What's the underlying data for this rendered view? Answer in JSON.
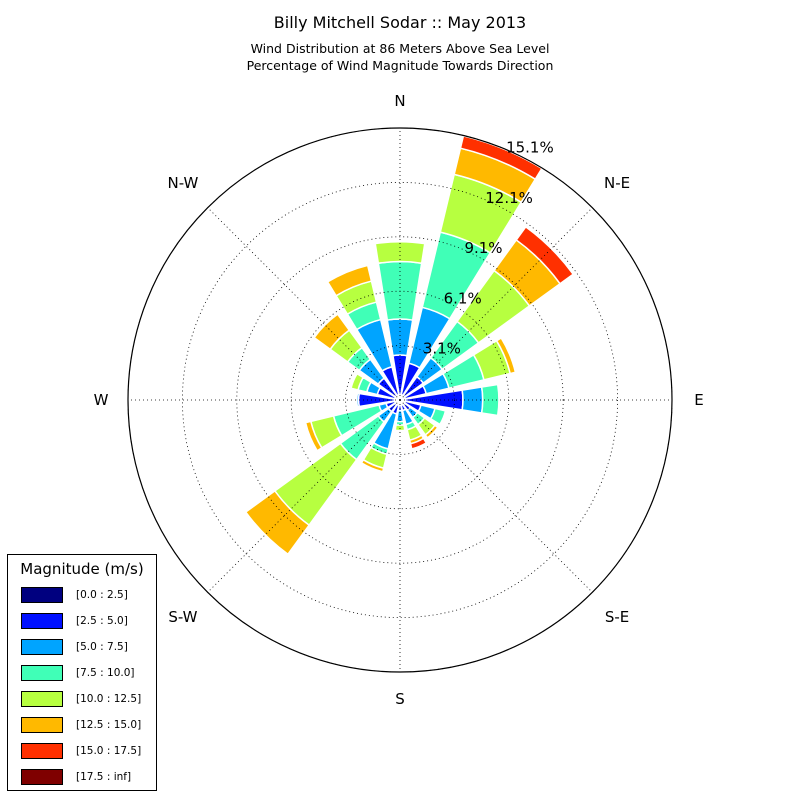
{
  "title": "Billy Mitchell Sodar :: May 2013",
  "subtitle_line1": "Wind Distribution at 86 Meters Above Sea Level",
  "subtitle_line2": "Percentage of Wind Magnitude Towards Direction",
  "directions": [
    "N",
    "N-E",
    "E",
    "S-E",
    "S",
    "S-W",
    "W",
    "N-W"
  ],
  "legend": {
    "title": "Magnitude (m/s)",
    "items": [
      {
        "label": "[0.0 : 2.5]",
        "color": "#00007f"
      },
      {
        "label": "[2.5 : 5.0]",
        "color": "#0010ff"
      },
      {
        "label": "[5.0 : 7.5]",
        "color": "#00a4ff"
      },
      {
        "label": "[7.5 : 10.0]",
        "color": "#40ffb7"
      },
      {
        "label": "[10.0 : 12.5]",
        "color": "#b7ff40"
      },
      {
        "label": "[12.5 : 15.0]",
        "color": "#ffb900"
      },
      {
        "label": "[15.0 : 17.5]",
        "color": "#ff3000"
      },
      {
        "label": "[17.5 : inf]",
        "color": "#7f0000"
      }
    ]
  },
  "chart_data": {
    "type": "wind-rose",
    "radial_ticks": [
      "3.1%",
      "6.1%",
      "9.1%",
      "12.1%",
      "15.1%"
    ],
    "radial_tick_values": [
      3.0247,
      6.0494,
      9.0741,
      12.0988,
      15.1235
    ],
    "rmax": 15.1235,
    "sector_width_deg": 18.0,
    "bins": [
      "[0.0 : 2.5]",
      "[2.5 : 5.0]",
      "[5.0 : 7.5]",
      "[7.5 : 10.0]",
      "[10.0 : 12.5]",
      "[12.5 : 15.0]",
      "[15.0 : 17.5]",
      "[17.5 : inf]"
    ],
    "sectors": [
      {
        "direction": 0.0,
        "cumulative": [
          0.3,
          2.5,
          4.5,
          7.7,
          8.8,
          8.8,
          8.8,
          8.8
        ]
      },
      {
        "direction": 22.5,
        "cumulative": [
          0.3,
          2.1,
          5.3,
          9.6,
          12.9,
          14.4,
          15.1,
          15.1
        ]
      },
      {
        "direction": 45.0,
        "cumulative": [
          0.3,
          1.6,
          2.9,
          5.4,
          8.9,
          11.0,
          11.9,
          11.9
        ]
      },
      {
        "direction": 67.5,
        "cumulative": [
          0.3,
          1.5,
          2.8,
          4.8,
          6.3,
          6.6,
          6.6,
          6.6
        ]
      },
      {
        "direction": 90.0,
        "cumulative": [
          0.3,
          3.5,
          4.6,
          5.5,
          5.5,
          5.5,
          5.5,
          5.5
        ]
      },
      {
        "direction": 112.5,
        "cumulative": [
          0.3,
          1.2,
          2.0,
          2.6,
          2.6,
          2.6,
          2.6,
          2.6
        ]
      },
      {
        "direction": 135.0,
        "cumulative": [
          0.3,
          0.7,
          1.2,
          1.7,
          2.4,
          2.6,
          2.6,
          2.6
        ]
      },
      {
        "direction": 157.5,
        "cumulative": [
          0.3,
          0.6,
          1.4,
          1.7,
          2.3,
          2.5,
          2.8,
          2.8
        ]
      },
      {
        "direction": 180.0,
        "cumulative": [
          0.3,
          0.6,
          1.2,
          1.4,
          1.7,
          1.7,
          1.7,
          1.7
        ]
      },
      {
        "direction": 202.5,
        "cumulative": [
          0.3,
          0.8,
          2.8,
          3.1,
          3.9,
          4.1,
          4.1,
          4.1
        ]
      },
      {
        "direction": 225.0,
        "cumulative": [
          0.3,
          0.8,
          1.5,
          4.1,
          8.6,
          10.6,
          10.6,
          10.6
        ]
      },
      {
        "direction": 247.5,
        "cumulative": [
          0.3,
          0.8,
          1.2,
          3.8,
          5.1,
          5.4,
          5.4,
          5.4
        ]
      },
      {
        "direction": 270.0,
        "cumulative": [
          0.3,
          2.3,
          2.4,
          2.4,
          2.4,
          2.4,
          2.4,
          2.4
        ]
      },
      {
        "direction": 292.5,
        "cumulative": [
          0.3,
          1.3,
          1.9,
          2.4,
          2.8,
          2.8,
          2.8,
          2.8
        ]
      },
      {
        "direction": 315.0,
        "cumulative": [
          0.3,
          1.5,
          2.8,
          3.6,
          4.8,
          5.9,
          5.9,
          5.9
        ]
      },
      {
        "direction": 337.5,
        "cumulative": [
          0.3,
          1.9,
          4.6,
          5.6,
          6.8,
          7.7,
          7.7,
          7.7
        ]
      }
    ]
  }
}
